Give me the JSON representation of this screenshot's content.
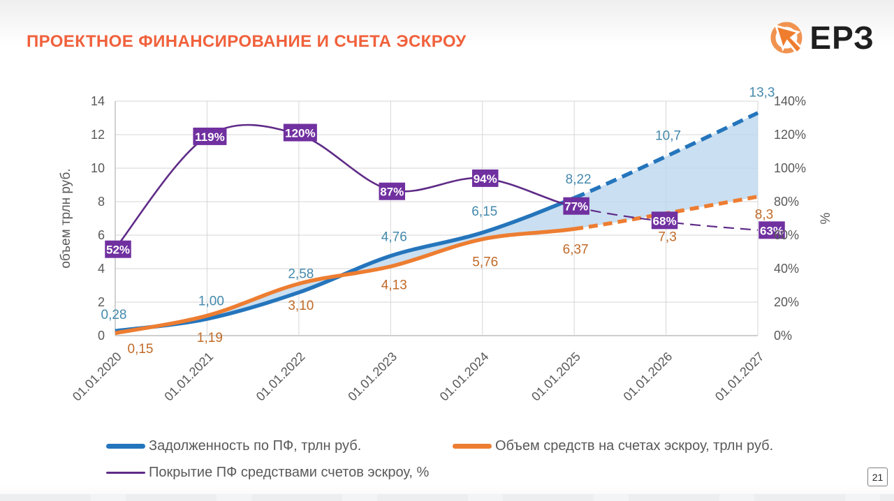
{
  "slide": {
    "title": "ПРОЕКТНОЕ ФИНАНСИРОВАНИЕ И СЧЕТА ЭСКРОУ",
    "logo_text": "ЕРЗ",
    "page_number": "21"
  },
  "colors": {
    "title": "#F0613C",
    "debt_line": "#2475BC",
    "debt_label": "#4489AC",
    "escrow_line": "#ED7D31",
    "escrow_label": "#C06A28",
    "coverage_line": "#5F2B87",
    "coverage_box": "#7030A0",
    "coverage_box_text": "#FFFFFF",
    "fill_area": "#BDD7EE",
    "axis_text": "#595959",
    "grid": "#D5D5D5",
    "axis_line": "#BDBDBD",
    "logo_ring": "#F19350",
    "logo_arrow": "#EF7D2E"
  },
  "chart_data": {
    "type": "line",
    "x": [
      "01.01.2020",
      "01.01.2021",
      "01.01.2022",
      "01.01.2023",
      "01.01.2024",
      "01.01.2025",
      "01.01.2026",
      "01.01.2027"
    ],
    "series": [
      {
        "name": "Задолженность по ПФ, трлн руб.",
        "axis": "left",
        "values": [
          0.28,
          1.0,
          2.58,
          4.76,
          6.15,
          8.22,
          10.7,
          13.3
        ],
        "labels": [
          "0,28",
          "1,00",
          "2,58",
          "4,76",
          "6,15",
          "8,22",
          "10,7",
          "13,3"
        ],
        "forecast_from_index": 5
      },
      {
        "name": "Объем средств на счетах эскроу, трлн руб.",
        "axis": "left",
        "values": [
          0.15,
          1.19,
          3.1,
          4.13,
          5.76,
          6.37,
          7.3,
          8.3
        ],
        "labels": [
          "0,15",
          "1,19",
          "3,10",
          "4,13",
          "5,76",
          "6,37",
          "7,3",
          "8,3"
        ],
        "forecast_from_index": 5
      },
      {
        "name": "Покрытие ПФ средствами счетов эскроу, %",
        "axis": "right",
        "values": [
          52,
          119,
          120,
          87,
          94,
          77,
          68,
          63
        ],
        "labels": [
          "52%",
          "119%",
          "120%",
          "87%",
          "94%",
          "77%",
          "68%",
          "63%"
        ],
        "forecast_from_index": 5
      }
    ],
    "left_axis": {
      "title": "объем трлн руб.",
      "min": 0,
      "max": 14,
      "step": 2,
      "tick_labels": [
        "0",
        "2",
        "4",
        "6",
        "8",
        "10",
        "12",
        "14"
      ]
    },
    "right_axis": {
      "title": "%",
      "min": 0,
      "max": 140,
      "step": 20,
      "tick_labels": [
        "0%",
        "20%",
        "40%",
        "60%",
        "80%",
        "100%",
        "120%",
        "140%"
      ]
    },
    "fill_between": {
      "upper": 0,
      "lower": 1
    },
    "grid": true,
    "legend_position": "bottom"
  }
}
